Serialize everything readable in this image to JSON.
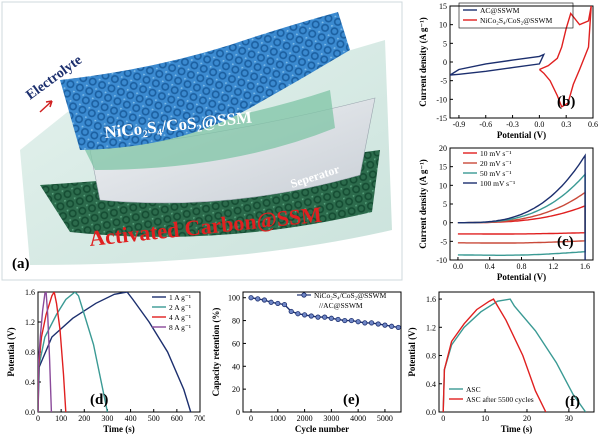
{
  "panel_a": {
    "letter": "(a)",
    "electrolyte": "Electrolyte",
    "cathode": "NiCo₂S₄/CoS₂@SSM",
    "separator": "Seperator",
    "anode": "Activated Carbon@SSM",
    "colors": {
      "blue_mesh": "#2f7fc1",
      "green_mesh": "#2f6e4f",
      "anode_text": "#e02020",
      "electrolyte_text": "#1c2f6e"
    }
  },
  "chart_data": [
    {
      "panel": "(b)",
      "type": "line",
      "ylabel": "Current density (A g⁻¹)",
      "xlabel": "Potential (V)",
      "xlim": [
        -1.0,
        0.6
      ],
      "ylim": [
        -15,
        15
      ],
      "xticks": [
        "-0.9",
        "-0.6",
        "-0.3",
        "0.0",
        "0.3",
        "0.6"
      ],
      "yticks": [
        "15",
        "10",
        "5",
        "0",
        "-5",
        "-10",
        "-15"
      ],
      "series": [
        {
          "name": "AC@SSWM",
          "color": "#1c2f6e",
          "x": [
            -1.0,
            -0.9,
            -0.6,
            -0.3,
            0.0,
            0.05,
            0.0,
            -0.3,
            -0.6,
            -0.9,
            -1.0
          ],
          "y": [
            -3.5,
            -2.0,
            -0.5,
            0.5,
            1.5,
            2.0,
            -0.5,
            -1.5,
            -2.5,
            -3.3,
            -3.5
          ]
        },
        {
          "name": "NiCo₂S₄/CoS₂@SSWM",
          "color": "#e02020",
          "x": [
            0.0,
            0.1,
            0.2,
            0.25,
            0.3,
            0.35,
            0.45,
            0.55,
            0.58,
            0.55,
            0.45,
            0.38,
            0.32,
            0.25,
            0.2,
            0.12,
            0.05,
            0.0
          ],
          "y": [
            -2.0,
            -1.0,
            1.0,
            4.0,
            9.0,
            13.0,
            10.0,
            11.0,
            15.0,
            4.0,
            -2.0,
            -6.0,
            -11.0,
            -12.0,
            -9.0,
            -5.0,
            -3.0,
            -2.0
          ]
        }
      ]
    },
    {
      "panel": "(c)",
      "type": "line",
      "ylabel": "Current density (A g⁻¹)",
      "xlabel": "Potential (V)",
      "xlim": [
        -0.1,
        1.7
      ],
      "ylim": [
        -10,
        20
      ],
      "xticks": [
        "0.0",
        "0.4",
        "0.8",
        "1.2",
        "1.6"
      ],
      "yticks": [
        "20",
        "15",
        "10",
        "5",
        "0",
        "-5",
        "-10"
      ],
      "series": [
        {
          "name": "10 mV s⁻¹",
          "color": "#e02020",
          "scale": 0.25
        },
        {
          "name": "20 mV s⁻¹",
          "color": "#c94a3a",
          "scale": 0.45
        },
        {
          "name": "50 mV s⁻¹",
          "color": "#3a9a94",
          "scale": 0.72
        },
        {
          "name": "100 mV s⁻¹",
          "color": "#1c2f6e",
          "scale": 1.0
        }
      ]
    },
    {
      "panel": "(d)",
      "type": "line",
      "ylabel": "Potential (V)",
      "xlabel": "Time (s)",
      "xlim": [
        0,
        700
      ],
      "ylim": [
        0,
        1.6
      ],
      "xticks": [
        "0",
        "100",
        "200",
        "300",
        "400",
        "500",
        "600",
        "700"
      ],
      "yticks": [
        "1.6",
        "1.2",
        "0.8",
        "0.4",
        "0.0"
      ],
      "series": [
        {
          "name": "1 A g⁻¹",
          "color": "#1c2f6e",
          "x": [
            0,
            5,
            60,
            150,
            250,
            330,
            385,
            410,
            480,
            560,
            630,
            660
          ],
          "y": [
            0.0,
            0.6,
            1.0,
            1.25,
            1.45,
            1.57,
            1.6,
            1.5,
            1.2,
            0.8,
            0.3,
            0.0
          ]
        },
        {
          "name": "2 A g⁻¹",
          "color": "#3a9a94",
          "x": [
            0,
            3,
            30,
            80,
            120,
            160,
            175,
            200,
            240,
            280,
            300
          ],
          "y": [
            0.0,
            0.6,
            1.0,
            1.3,
            1.5,
            1.6,
            1.55,
            1.3,
            0.9,
            0.3,
            0.0
          ]
        },
        {
          "name": "4 A g⁻¹",
          "color": "#e02020",
          "x": [
            0,
            2,
            15,
            35,
            60,
            70,
            80,
            95,
            110,
            120
          ],
          "y": [
            0.0,
            0.6,
            1.0,
            1.3,
            1.55,
            1.6,
            1.45,
            1.1,
            0.5,
            0.0
          ]
        },
        {
          "name": "8 A g⁻¹",
          "color": "#8a4a9a",
          "x": [
            0,
            1,
            10,
            20,
            30,
            35,
            42,
            50,
            58
          ],
          "y": [
            0.0,
            0.6,
            1.0,
            1.35,
            1.58,
            1.6,
            1.3,
            0.7,
            0.0
          ]
        }
      ]
    },
    {
      "panel": "(e)",
      "type": "line",
      "ylabel": "Capacity retention (%)",
      "xlabel": "Cycle number",
      "xlim": [
        -300,
        5600
      ],
      "ylim": [
        0,
        105
      ],
      "xticks": [
        "0",
        "1000",
        "2000",
        "3000",
        "4000",
        "5000"
      ],
      "yticks": [
        "100",
        "80",
        "60",
        "40",
        "20",
        "0"
      ],
      "legend_line1": "NiCo₂S₄/CoS₂@SSWM",
      "legend_line2": "//AC@SSWM",
      "series": [
        {
          "name": "NiCo₂S₄/CoS₂@SSWM //AC@SSWM",
          "color": "#1c2f6e",
          "x": [
            0,
            250,
            500,
            750,
            1000,
            1250,
            1500,
            1750,
            2000,
            2250,
            2500,
            2750,
            3000,
            3250,
            3500,
            3750,
            4000,
            4250,
            4500,
            4750,
            5000,
            5250,
            5500
          ],
          "y": [
            100,
            99,
            98,
            96,
            95,
            94,
            88,
            86,
            85,
            84,
            83,
            83,
            82,
            81,
            80,
            80,
            79,
            78,
            78,
            77,
            76,
            75,
            74
          ]
        }
      ]
    },
    {
      "panel": "(f)",
      "type": "line",
      "ylabel": "Potential (V)",
      "xlabel": "Time (s)",
      "xlim": [
        -1,
        36
      ],
      "ylim": [
        0,
        1.7
      ],
      "xticks": [
        "0",
        "10",
        "20",
        "30"
      ],
      "yticks": [
        "1.6",
        "1.2",
        "0.8",
        "0.4",
        "0.0"
      ],
      "series": [
        {
          "name": "ASC",
          "color": "#3a9a94",
          "x": [
            0,
            0.3,
            2,
            5,
            9,
            13,
            16,
            17,
            22,
            27,
            31,
            34
          ],
          "y": [
            0.0,
            0.6,
            0.95,
            1.2,
            1.42,
            1.57,
            1.6,
            1.5,
            1.15,
            0.7,
            0.25,
            0.0
          ]
        },
        {
          "name": "ASC after 5500 cycles",
          "color": "#e02020",
          "x": [
            0,
            0.3,
            2,
            5,
            8,
            11,
            12,
            15,
            19,
            22,
            24.5
          ],
          "y": [
            0.0,
            0.6,
            1.0,
            1.25,
            1.45,
            1.57,
            1.6,
            1.3,
            0.8,
            0.3,
            0.0
          ]
        }
      ]
    }
  ]
}
